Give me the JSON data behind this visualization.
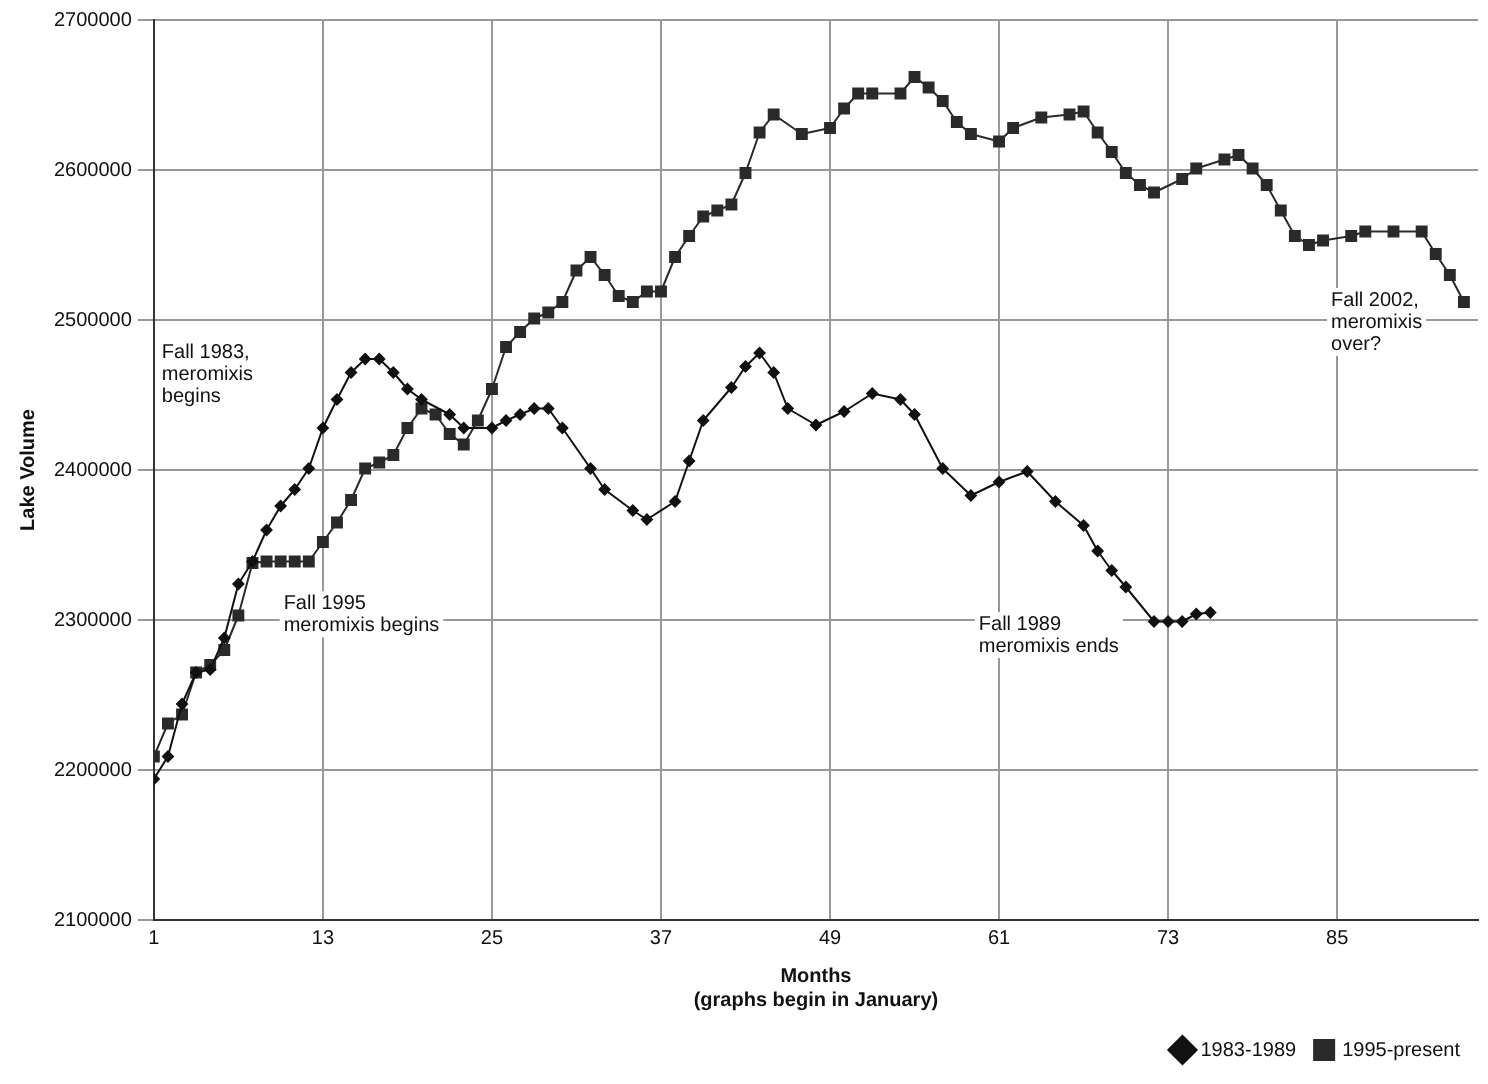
{
  "chart_data": {
    "type": "line",
    "xlabel": "Months\n(graphs begin in January)",
    "ylabel": "Lake Volume",
    "xlim": [
      1,
      95
    ],
    "xticks": [
      1,
      13,
      25,
      37,
      49,
      61,
      73,
      85
    ],
    "ylim": [
      2100000,
      2700000
    ],
    "yticks": [
      2100000,
      2200000,
      2300000,
      2400000,
      2500000,
      2600000,
      2700000
    ],
    "grid": true,
    "legend": "bottom right",
    "series": [
      {
        "name": "1995-present",
        "color": "#2a2a2a",
        "marker": "square",
        "x": [
          1,
          2,
          3,
          4,
          5,
          6,
          7,
          8,
          9,
          10,
          11,
          12,
          13,
          14,
          15,
          16,
          17,
          18,
          19,
          20,
          21,
          22,
          23,
          24,
          25,
          26,
          27,
          28,
          29,
          30,
          31,
          32,
          33,
          34,
          35,
          36,
          37,
          38,
          39,
          40,
          41,
          42,
          43,
          44,
          45,
          47,
          49,
          50,
          51,
          52,
          54,
          55,
          56,
          57,
          58,
          59,
          61,
          62,
          64,
          66,
          67,
          68,
          69,
          70,
          71,
          72,
          74,
          75,
          77,
          78,
          79,
          80,
          81,
          82,
          83,
          84,
          86,
          87,
          89,
          91,
          92,
          93,
          94
        ],
        "values": [
          2209000,
          2231000,
          2237000,
          2265000,
          2270000,
          2280000,
          2303000,
          2338000,
          2339000,
          2339000,
          2339000,
          2339000,
          2352000,
          2365000,
          2380000,
          2401000,
          2405000,
          2410000,
          2428000,
          2441000,
          2437000,
          2424000,
          2417000,
          2433000,
          2454000,
          2482000,
          2492000,
          2501000,
          2505000,
          2512000,
          2533000,
          2542000,
          2530000,
          2516000,
          2512000,
          2519000,
          2519000,
          2542000,
          2556000,
          2569000,
          2573000,
          2577000,
          2598000,
          2625000,
          2637000,
          2624000,
          2628000,
          2641000,
          2651000,
          2651000,
          2651000,
          2662000,
          2655000,
          2646000,
          2632000,
          2624000,
          2619000,
          2628000,
          2635000,
          2637000,
          2639000,
          2625000,
          2612000,
          2598000,
          2590000,
          2585000,
          2594000,
          2601000,
          2607000,
          2610000,
          2601000,
          2590000,
          2573000,
          2556000,
          2550000,
          2553000,
          2556000,
          2559000,
          2559000,
          2559000,
          2544000,
          2530000,
          2512000
        ]
      },
      {
        "name": "1983-1989",
        "color": "#111111",
        "marker": "diamond",
        "x": [
          1,
          2,
          3,
          4,
          5,
          6,
          7,
          8,
          9,
          10,
          11,
          12,
          13,
          14,
          15,
          16,
          17,
          18,
          19,
          20,
          22,
          23,
          25,
          26,
          27,
          28,
          29,
          30,
          32,
          33,
          35,
          36,
          38,
          39,
          40,
          42,
          43,
          44,
          45,
          46,
          48,
          50,
          52,
          54,
          55,
          57,
          59,
          61,
          63,
          65,
          67,
          68,
          69,
          70,
          72,
          73,
          74,
          75,
          76
        ],
        "values": [
          2194000,
          2209000,
          2244000,
          2265000,
          2267000,
          2288000,
          2324000,
          2339000,
          2360000,
          2376000,
          2387000,
          2401000,
          2428000,
          2447000,
          2465000,
          2474000,
          2474000,
          2465000,
          2454000,
          2447000,
          2437000,
          2428000,
          2428000,
          2433000,
          2437000,
          2441000,
          2441000,
          2428000,
          2401000,
          2387000,
          2373000,
          2367000,
          2379000,
          2406000,
          2433000,
          2455000,
          2469000,
          2478000,
          2465000,
          2441000,
          2430000,
          2439000,
          2451000,
          2447000,
          2437000,
          2401000,
          2383000,
          2392000,
          2399000,
          2379000,
          2363000,
          2346000,
          2333000,
          2322000,
          2299000,
          2299000,
          2299000,
          2304000,
          2305000
        ]
      }
    ],
    "annotations": [
      "Fall 1983,\nmeromixis\nbegins",
      "Fall 1995\nmeromixis begins",
      "Fall 1989\nmeromixis ends",
      "Fall 2002,\nmeromixis\nover?"
    ]
  }
}
